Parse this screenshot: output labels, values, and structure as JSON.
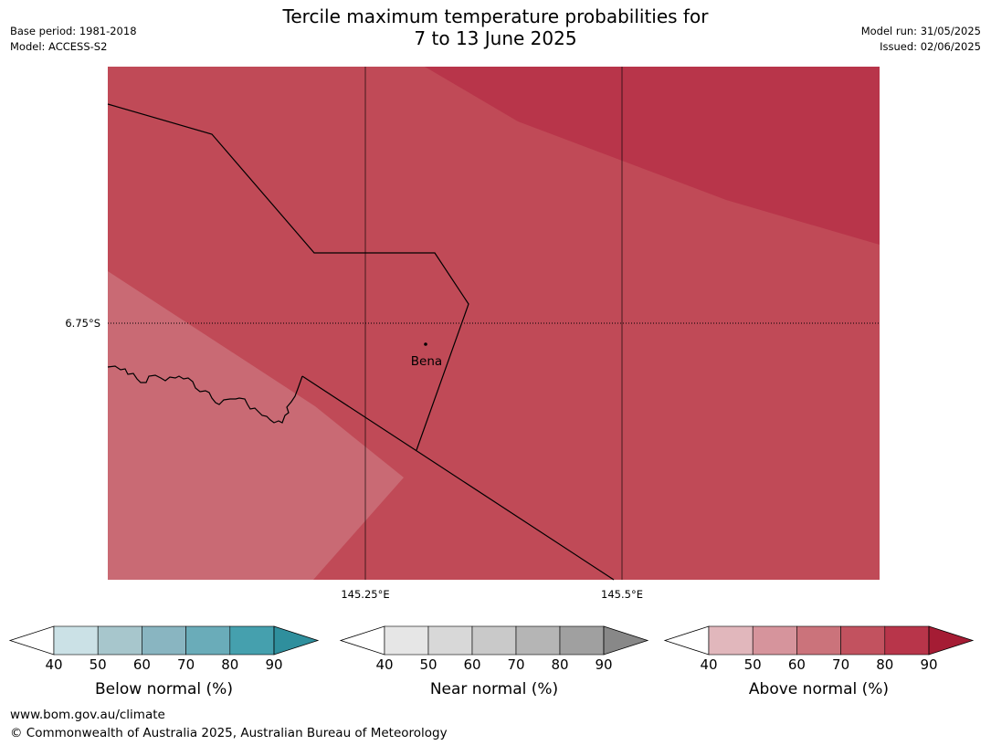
{
  "title": {
    "line1": "Tercile maximum temperature probabilities for",
    "line2": "7 to 13 June 2025"
  },
  "meta_left": {
    "base_period": "Base period: 1981-2018",
    "model": "Model: ACCESS-S2"
  },
  "meta_right": {
    "model_run": "Model run: 31/05/2025",
    "issued": "Issued: 02/06/2025"
  },
  "map": {
    "lat_labels": [
      "6.75°S"
    ],
    "lon_labels": [
      "145.25°E",
      "145.5°E"
    ],
    "places": [
      {
        "name": "Bena"
      }
    ],
    "colors": {
      "above_80": "#b8354a",
      "above_70": "#c04a57",
      "above_60": "#c96a74",
      "border": "#000000"
    }
  },
  "colorbars": [
    {
      "label": "Below normal (%)",
      "ticks": [
        "40",
        "50",
        "60",
        "70",
        "80",
        "90"
      ],
      "colors": [
        "#cbe1e6",
        "#a7c6cc",
        "#89b5c1",
        "#6aacb9",
        "#45a0ae",
        "#2f8f9d"
      ]
    },
    {
      "label": "Near normal (%)",
      "ticks": [
        "40",
        "50",
        "60",
        "70",
        "80",
        "90"
      ],
      "colors": [
        "#e6e6e6",
        "#d8d8d8",
        "#c9c9c9",
        "#b5b5b5",
        "#a0a0a0",
        "#888888"
      ]
    },
    {
      "label": "Above normal (%)",
      "ticks": [
        "40",
        "50",
        "60",
        "70",
        "80",
        "90"
      ],
      "colors": [
        "#e1b7bc",
        "#d6949c",
        "#cb737b",
        "#c2525f",
        "#b8354a",
        "#a51c34"
      ]
    }
  ],
  "footer": {
    "url": "www.bom.gov.au/climate",
    "copyright": "© Commonwealth of Australia 2025, Australian Bureau of Meteorology"
  }
}
